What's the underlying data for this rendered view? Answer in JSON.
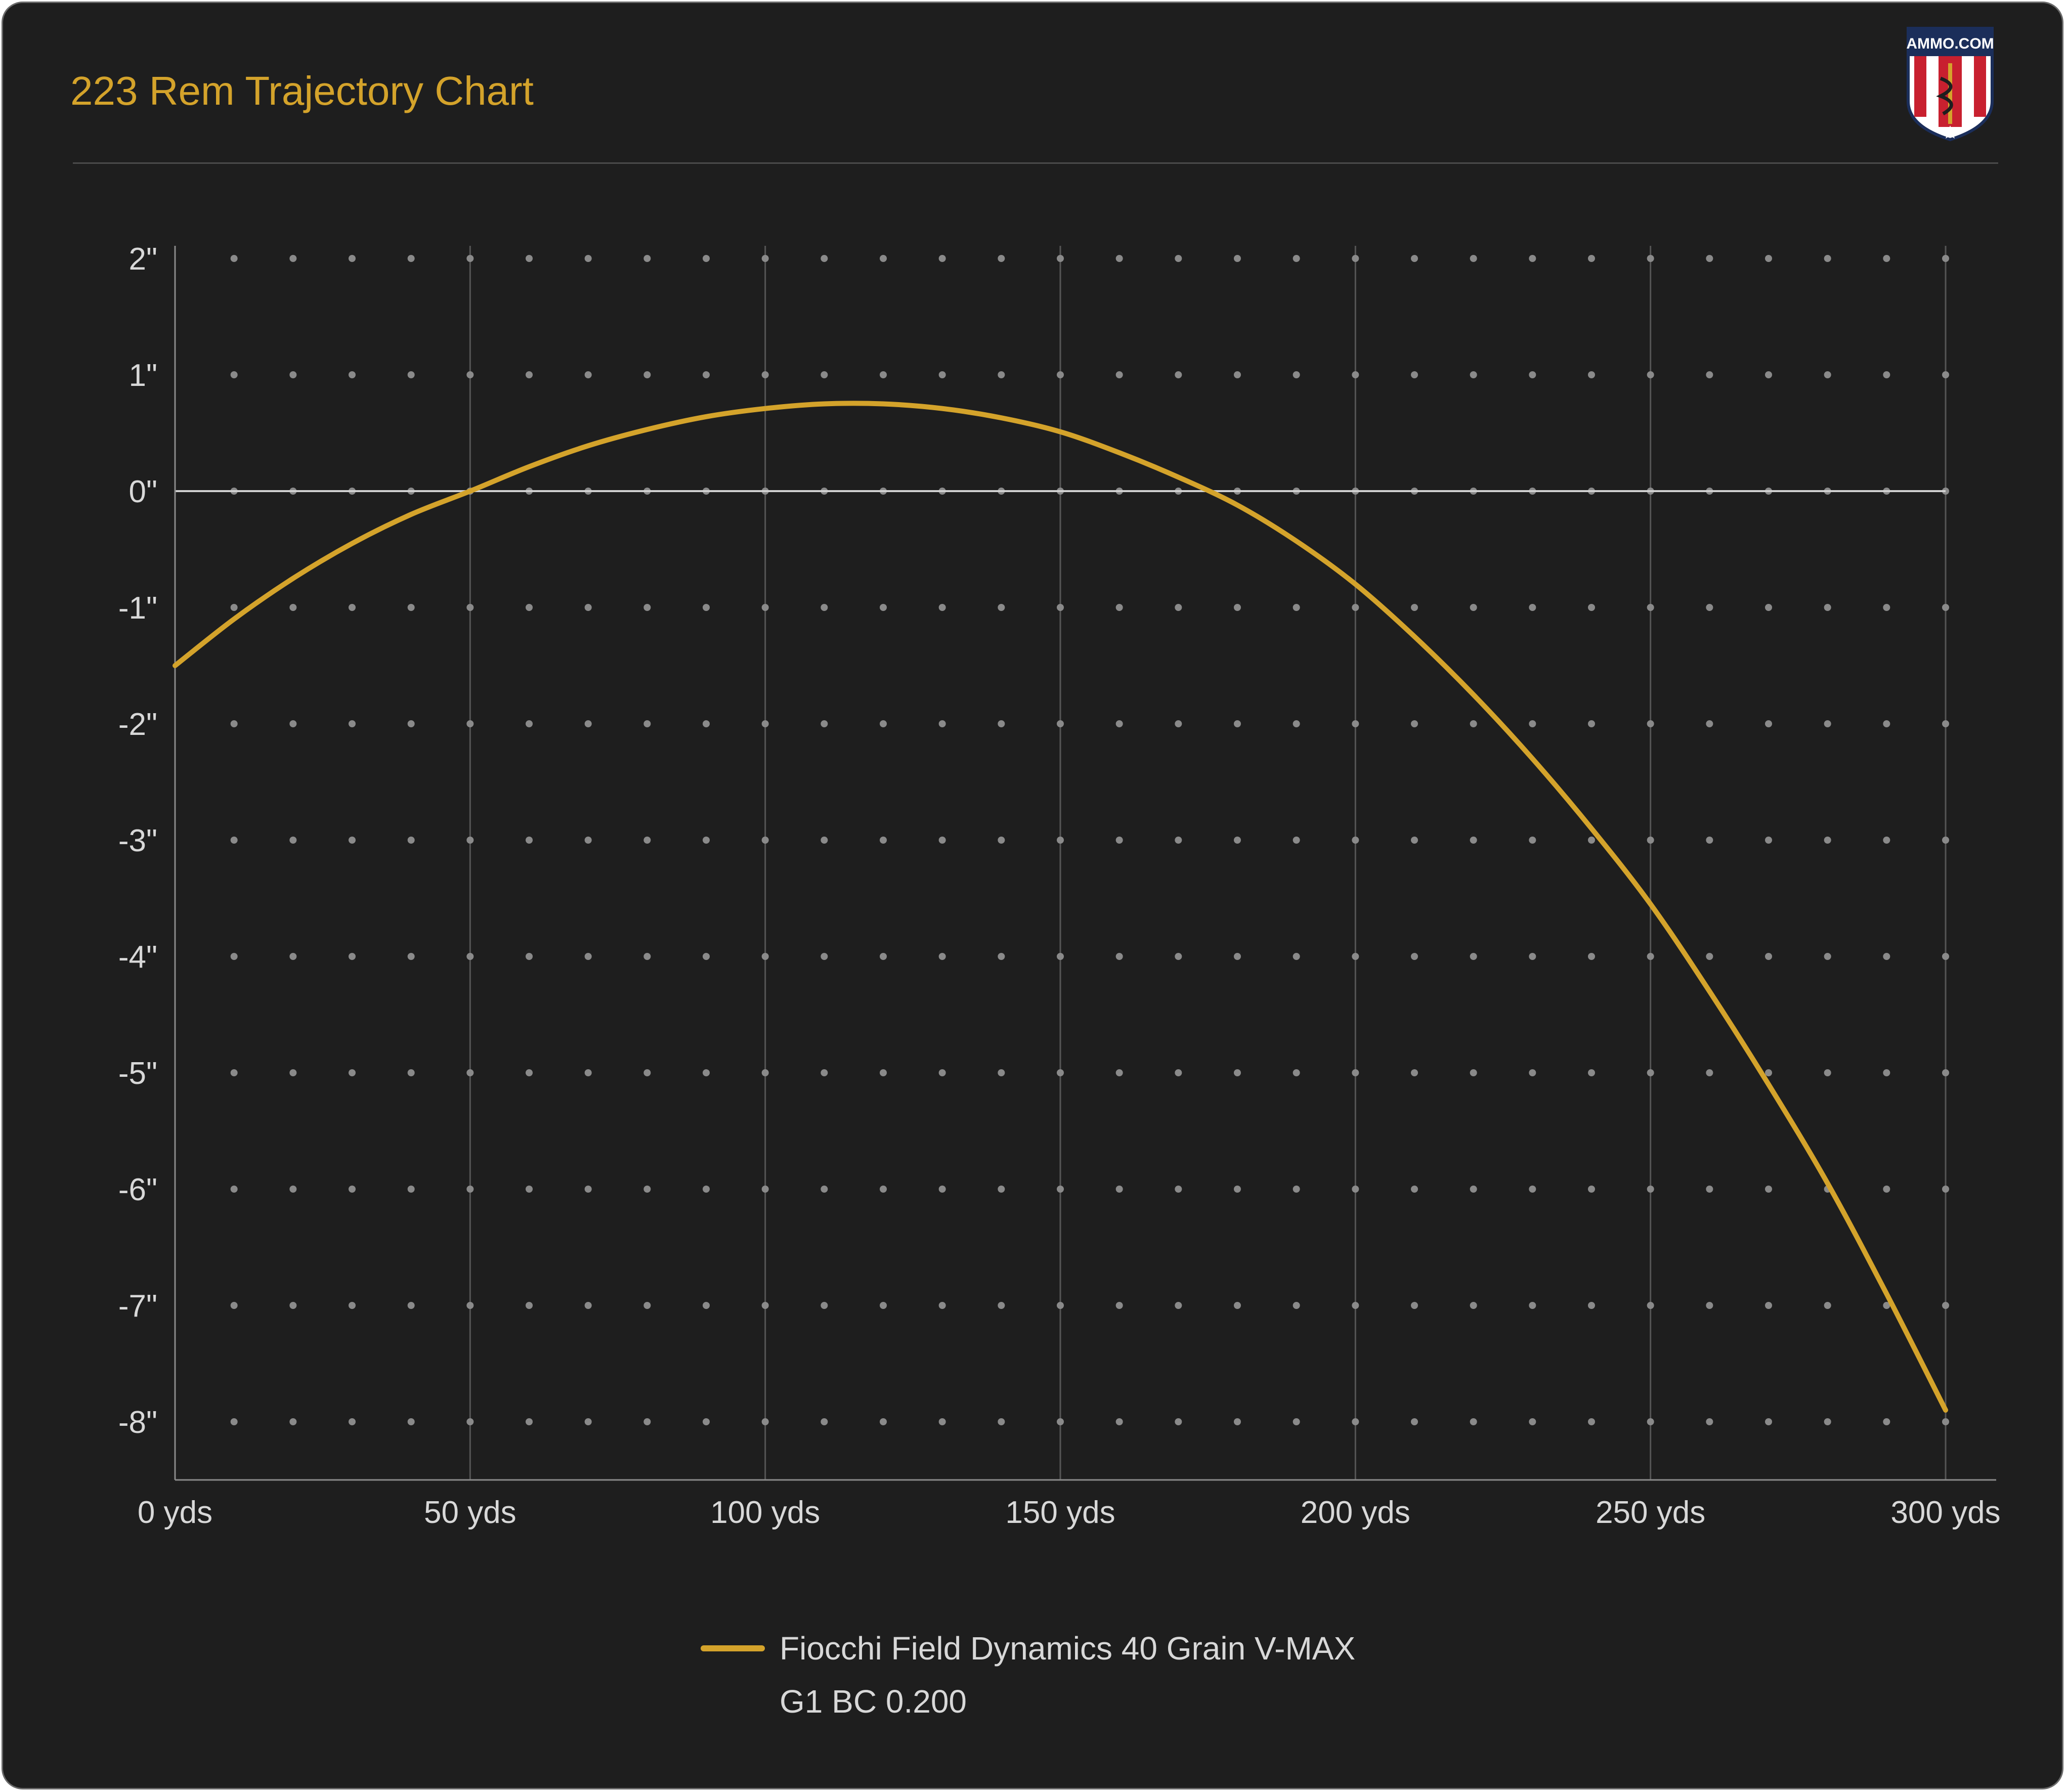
{
  "title": "223 Rem Trajectory Chart",
  "logo": {
    "text": "AMMO.COM"
  },
  "colors": {
    "background": "#1e1e1e",
    "title": "#d4a32b",
    "series": "#d4a32b",
    "grid_line": "#555555",
    "grid_dot": "#8a8a8a",
    "zero_line": "#d0d0d0",
    "text": "#d8d8d8"
  },
  "chart_data": {
    "type": "line",
    "title": "223 Rem Trajectory Chart",
    "xlabel": "",
    "ylabel": "",
    "xlim": [
      0,
      300
    ],
    "ylim": [
      -8.5,
      2
    ],
    "x_ticks": [
      {
        "value": 0,
        "label": "0 yds"
      },
      {
        "value": 50,
        "label": "50 yds"
      },
      {
        "value": 100,
        "label": "100 yds"
      },
      {
        "value": 150,
        "label": "150 yds"
      },
      {
        "value": 200,
        "label": "200 yds"
      },
      {
        "value": 250,
        "label": "250 yds"
      },
      {
        "value": 300,
        "label": "300 yds"
      }
    ],
    "y_ticks": [
      {
        "value": 2,
        "label": "2\""
      },
      {
        "value": 1,
        "label": "1\""
      },
      {
        "value": 0,
        "label": "0\""
      },
      {
        "value": -1,
        "label": "-1\""
      },
      {
        "value": -2,
        "label": "-2\""
      },
      {
        "value": -3,
        "label": "-3\""
      },
      {
        "value": -4,
        "label": "-4\""
      },
      {
        "value": -5,
        "label": "-5\""
      },
      {
        "value": -6,
        "label": "-6\""
      },
      {
        "value": -7,
        "label": "-7\""
      },
      {
        "value": -8,
        "label": "-8\""
      }
    ],
    "grid": true,
    "legend_position": "bottom-center",
    "series": [
      {
        "name": "Fiocchi Field Dynamics 40 Grain V-MAX",
        "subtitle": "G1 BC  0.200",
        "color": "#d4a32b",
        "x": [
          0,
          10,
          20,
          30,
          40,
          50,
          60,
          70,
          80,
          90,
          100,
          110,
          120,
          130,
          140,
          150,
          160,
          170,
          180,
          190,
          200,
          210,
          220,
          230,
          240,
          250,
          260,
          270,
          280,
          290,
          300
        ],
        "y": [
          -1.5,
          -1.1,
          -0.75,
          -0.45,
          -0.2,
          0.0,
          0.21,
          0.39,
          0.53,
          0.64,
          0.71,
          0.75,
          0.75,
          0.71,
          0.63,
          0.51,
          0.33,
          0.12,
          -0.12,
          -0.43,
          -0.8,
          -1.25,
          -1.75,
          -2.3,
          -2.9,
          -3.55,
          -4.3,
          -5.1,
          -5.95,
          -6.9,
          -7.9
        ]
      }
    ]
  }
}
